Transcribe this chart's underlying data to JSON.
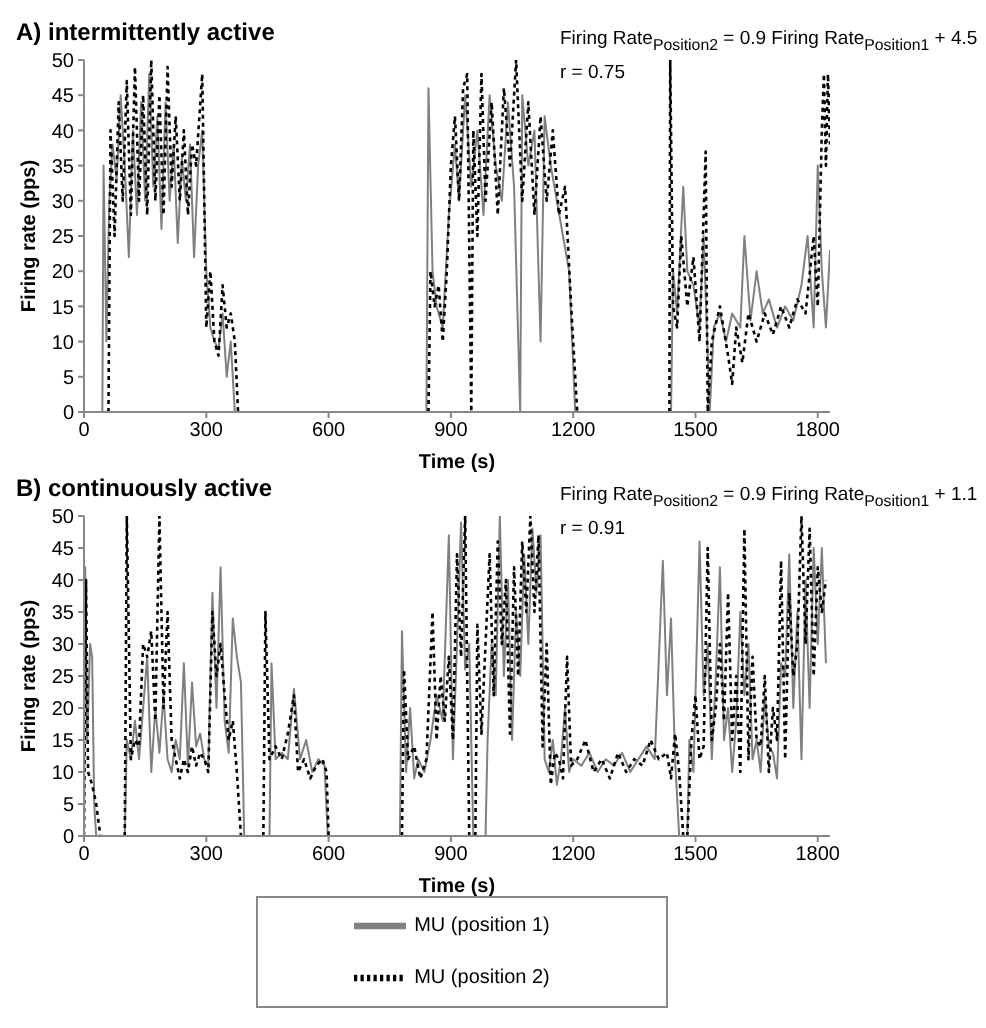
{
  "chart_data": [
    {
      "type": "line",
      "title": "A) intermittently active",
      "xlabel": "Time (s)",
      "ylabel": "Firing rate (pps)",
      "xlim": [
        0,
        1830
      ],
      "xticks": [
        0,
        300,
        600,
        900,
        1200,
        1500,
        1800
      ],
      "ylim": [
        0,
        50
      ],
      "yticks": [
        0,
        5,
        10,
        15,
        20,
        25,
        30,
        35,
        40,
        45,
        50
      ],
      "legend": false,
      "annotations": [
        "Firing Rate$_{Position2}$ = 0.9 Firing Rate$_{Position1}$ + 4.5",
        "r = 0.75"
      ],
      "series": [
        {
          "color": "#808080",
          "line_style": "solid",
          "x": [
            45,
            48,
            55,
            62,
            70,
            80,
            90,
            100,
            110,
            120,
            130,
            140,
            150,
            160,
            170,
            180,
            190,
            200,
            210,
            220,
            230,
            240,
            250,
            260,
            270,
            280,
            290,
            300,
            310,
            320,
            330,
            340,
            350,
            360,
            370,
            600,
            840,
            845,
            855,
            865,
            880,
            895,
            910,
            920,
            935,
            950,
            965,
            980,
            995,
            1010,
            1025,
            1040,
            1055,
            1070,
            1075,
            1090,
            1105,
            1120,
            1130,
            1145,
            1160,
            1175,
            1190,
            1205,
            1300,
            1440,
            1445,
            1455,
            1470,
            1480,
            1495,
            1510,
            1520,
            1535,
            1545,
            1560,
            1575,
            1590,
            1610,
            1620,
            1635,
            1650,
            1665,
            1680,
            1700,
            1720,
            1740,
            1760,
            1775,
            1790,
            1800,
            1810,
            1820,
            1830
          ],
          "values": [
            0,
            35,
            10,
            30,
            38,
            33,
            45,
            35,
            22,
            40,
            28,
            44,
            30,
            48,
            32,
            42,
            26,
            44,
            30,
            38,
            24,
            36,
            30,
            38,
            22,
            35,
            40,
            20,
            12,
            10,
            9,
            14,
            5,
            10,
            0,
            null,
            0,
            46,
            20,
            15,
            12,
            28,
            38,
            30,
            45,
            32,
            40,
            28,
            45,
            35,
            30,
            44,
            32,
            0,
            45,
            35,
            40,
            10,
            42,
            35,
            30,
            25,
            20,
            0,
            null,
            0,
            20,
            14,
            32,
            20,
            18,
            12,
            25,
            0,
            12,
            14,
            10,
            14,
            12,
            25,
            13,
            20,
            14,
            16,
            12,
            15,
            13,
            18,
            25,
            12,
            35,
            20,
            12,
            23
          ]
        },
        {
          "color": "#000000",
          "line_style": "dotted",
          "x": [
            60,
            65,
            75,
            85,
            95,
            105,
            115,
            125,
            135,
            145,
            155,
            165,
            175,
            185,
            195,
            205,
            215,
            225,
            235,
            245,
            255,
            265,
            275,
            290,
            300,
            310,
            320,
            330,
            340,
            350,
            360,
            370,
            378,
            600,
            845,
            850,
            860,
            870,
            880,
            890,
            900,
            910,
            920,
            930,
            940,
            950,
            955,
            965,
            975,
            985,
            1000,
            1015,
            1030,
            1045,
            1060,
            1075,
            1090,
            1105,
            1120,
            1135,
            1150,
            1165,
            1180,
            1195,
            1210,
            1300,
            1436,
            1438,
            1445,
            1455,
            1465,
            1480,
            1495,
            1510,
            1525,
            1530,
            1540,
            1560,
            1580,
            1590,
            1600,
            1615,
            1630,
            1650,
            1670,
            1690,
            1710,
            1730,
            1750,
            1770,
            1790,
            1800,
            1810,
            1815,
            1820,
            1825,
            1830
          ],
          "values": [
            0,
            40,
            25,
            44,
            30,
            47,
            28,
            49,
            30,
            45,
            28,
            50,
            30,
            45,
            28,
            49,
            32,
            42,
            30,
            40,
            28,
            38,
            35,
            48,
            12,
            20,
            10,
            8,
            18,
            12,
            14,
            10,
            0,
            null,
            0,
            20,
            15,
            18,
            10,
            20,
            35,
            42,
            30,
            46,
            48,
            0,
            40,
            25,
            48,
            30,
            44,
            28,
            46,
            35,
            50,
            30,
            44,
            28,
            42,
            30,
            40,
            28,
            32,
            15,
            0,
            null,
            0,
            50,
            15,
            12,
            25,
            15,
            22,
            10,
            37,
            0,
            10,
            15,
            8,
            4,
            12,
            7,
            14,
            10,
            14,
            11,
            15,
            12,
            16,
            14,
            25,
            15,
            40,
            48,
            35,
            48,
            38
          ]
        }
      ]
    },
    {
      "type": "line",
      "title": "B) continuously active",
      "xlabel": "Time (s)",
      "ylabel": "Firing rate (pps)",
      "xlim": [
        0,
        1830
      ],
      "xticks": [
        0,
        300,
        600,
        900,
        1200,
        1500,
        1800
      ],
      "ylim": [
        0,
        50
      ],
      "yticks": [
        0,
        5,
        10,
        15,
        20,
        25,
        30,
        35,
        40,
        45,
        50
      ],
      "legend": "bottom",
      "annotations": [
        "Firing Rate$_{Position2}$ = 0.9 Firing Rate$_{Position1}$ + 1.1",
        "r = 0.91"
      ],
      "series": [
        {
          "name": "MU (position 1)",
          "color": "#808080",
          "line_style": "solid",
          "x": [
            0,
            3,
            8,
            15,
            20,
            25,
            30,
            60,
            100,
            105,
            115,
            125,
            135,
            145,
            155,
            165,
            175,
            185,
            195,
            205,
            215,
            225,
            235,
            245,
            255,
            265,
            275,
            285,
            295,
            305,
            315,
            325,
            335,
            345,
            355,
            365,
            375,
            385,
            393,
            420,
            455,
            460,
            470,
            485,
            500,
            515,
            530,
            545,
            560,
            575,
            590,
            598,
            700,
            775,
            780,
            790,
            800,
            810,
            820,
            835,
            850,
            865,
            880,
            895,
            905,
            915,
            925,
            935,
            945,
            955,
            960,
            985,
            990,
            1000,
            1010,
            1020,
            1030,
            1040,
            1050,
            1060,
            1070,
            1080,
            1090,
            1100,
            1110,
            1120,
            1130,
            1140,
            1150,
            1160,
            1170,
            1180,
            1190,
            1200,
            1220,
            1240,
            1260,
            1280,
            1300,
            1320,
            1340,
            1360,
            1380,
            1400,
            1420,
            1430,
            1440,
            1450,
            1460,
            1470,
            1480,
            1485,
            1495,
            1510,
            1520,
            1530,
            1540,
            1550,
            1560,
            1570,
            1580,
            1590,
            1600,
            1610,
            1620,
            1630,
            1640,
            1650,
            1660,
            1670,
            1680,
            1690,
            1700,
            1710,
            1720,
            1730,
            1740,
            1750,
            1760,
            1770,
            1780,
            1790,
            1800,
            1810,
            1820
          ],
          "values": [
            0,
            42,
            15,
            30,
            28,
            5,
            0,
            null,
            0,
            15,
            12,
            18,
            12,
            20,
            28,
            10,
            20,
            13,
            22,
            12,
            10,
            15,
            12,
            27,
            11,
            24,
            14,
            16,
            12,
            11,
            38,
            20,
            42,
            18,
            13,
            34,
            28,
            24,
            0,
            null,
            0,
            27,
            12,
            13,
            12,
            23,
            12,
            15,
            10,
            12,
            11,
            0,
            null,
            0,
            32,
            10,
            20,
            9,
            12,
            10,
            15,
            22,
            18,
            47,
            12,
            30,
            49,
            26,
            30,
            0,
            null,
            0,
            15,
            30,
            22,
            50,
            25,
            40,
            15,
            35,
            25,
            44,
            30,
            48,
            38,
            47,
            12,
            10,
            15,
            8,
            12,
            20,
            10,
            12,
            11,
            13,
            10,
            12,
            11,
            13,
            10,
            12,
            14,
            12,
            43,
            22,
            34,
            12,
            0,
            null,
            0,
            15,
            10,
            46,
            22,
            30,
            12,
            25,
            42,
            15,
            20,
            10,
            18,
            35,
            22,
            30,
            12,
            15,
            10,
            22,
            14,
            13,
            9,
            27,
            25,
            44,
            20,
            35,
            12,
            40,
            20,
            45,
            30,
            45,
            27
          ]
        },
        {
          "name": "MU (position 2)",
          "color": "#000000",
          "line_style": "dotted",
          "x": [
            0,
            5,
            10,
            20,
            30,
            40,
            60,
            100,
            105,
            115,
            125,
            135,
            145,
            155,
            165,
            175,
            185,
            195,
            205,
            215,
            225,
            235,
            245,
            255,
            265,
            275,
            285,
            295,
            305,
            315,
            325,
            335,
            345,
            355,
            365,
            375,
            385,
            420,
            440,
            445,
            455,
            470,
            485,
            500,
            515,
            525,
            540,
            555,
            570,
            585,
            595,
            600,
            700,
            780,
            785,
            795,
            810,
            825,
            840,
            855,
            865,
            875,
            885,
            895,
            905,
            915,
            925,
            935,
            945,
            950,
            960,
            965,
            975,
            985,
            995,
            1005,
            1015,
            1025,
            1035,
            1045,
            1055,
            1065,
            1075,
            1085,
            1095,
            1105,
            1115,
            1125,
            1135,
            1145,
            1155,
            1165,
            1175,
            1185,
            1195,
            1210,
            1230,
            1250,
            1270,
            1290,
            1310,
            1330,
            1350,
            1370,
            1390,
            1410,
            1430,
            1440,
            1450,
            1460,
            1470,
            1475,
            1480,
            1490,
            1500,
            1510,
            1520,
            1530,
            1540,
            1550,
            1560,
            1570,
            1580,
            1590,
            1600,
            1610,
            1620,
            1630,
            1640,
            1650,
            1660,
            1670,
            1680,
            1690,
            1700,
            1710,
            1720,
            1730,
            1740,
            1750,
            1760,
            1770,
            1780,
            1790,
            1800,
            1810,
            1820
          ],
          "values": [
            0,
            40,
            10,
            8,
            5,
            0,
            null,
            0,
            50,
            12,
            15,
            14,
            30,
            28,
            32,
            18,
            50,
            20,
            35,
            15,
            12,
            9,
            12,
            10,
            14,
            11,
            13,
            12,
            10,
            35,
            25,
            30,
            22,
            15,
            18,
            10,
            0,
            null,
            0,
            35,
            12,
            14,
            12,
            16,
            22,
            10,
            12,
            9,
            11,
            12,
            10,
            0,
            null,
            0,
            26,
            12,
            14,
            9,
            12,
            35,
            15,
            25,
            18,
            28,
            15,
            44,
            28,
            50,
            0,
            null,
            0,
            33,
            16,
            30,
            44,
            22,
            46,
            30,
            40,
            16,
            42,
            25,
            46,
            35,
            50,
            35,
            47,
            14,
            30,
            8,
            13,
            12,
            9,
            28,
            11,
            12,
            15,
            10,
            12,
            9,
            13,
            10,
            12,
            11,
            15,
            12,
            13,
            9,
            16,
            10,
            0,
            null,
            0,
            15,
            22,
            12,
            14,
            45,
            15,
            20,
            30,
            18,
            38,
            15,
            25,
            10,
            48,
            12,
            28,
            15,
            14,
            25,
            10,
            20,
            15,
            43,
            12,
            38,
            25,
            30,
            50,
            30,
            48,
            25,
            42,
            35,
            40
          ]
        }
      ]
    }
  ]
}
